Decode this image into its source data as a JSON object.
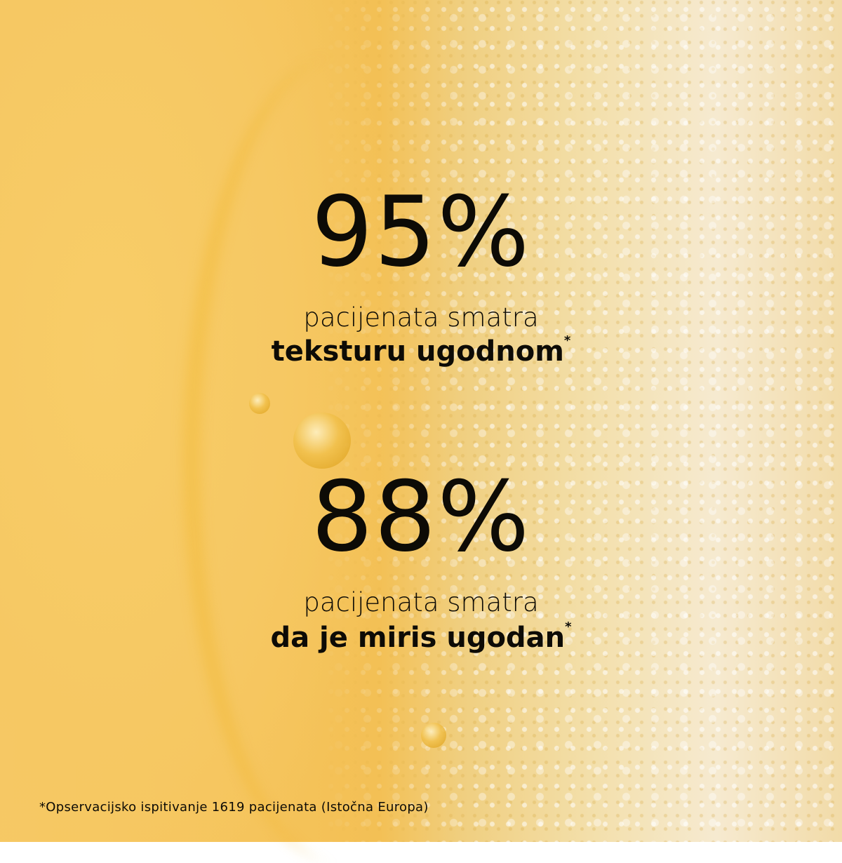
{
  "stats": [
    {
      "value": "95%",
      "line1": "pacijenata smatra",
      "line2": "teksturu ugodnom",
      "marker": "*"
    },
    {
      "value": "88%",
      "line1": "pacijenata smatra",
      "line2": "da je miris ugodan",
      "marker": "*"
    }
  ],
  "footnote": "*Opservacijsko ispitivanje 1619 pacijenata (Istočna Europa)",
  "colors": {
    "background_gel": "#f6c863",
    "foam": "#f6ead0",
    "text": "#0d0b06"
  }
}
